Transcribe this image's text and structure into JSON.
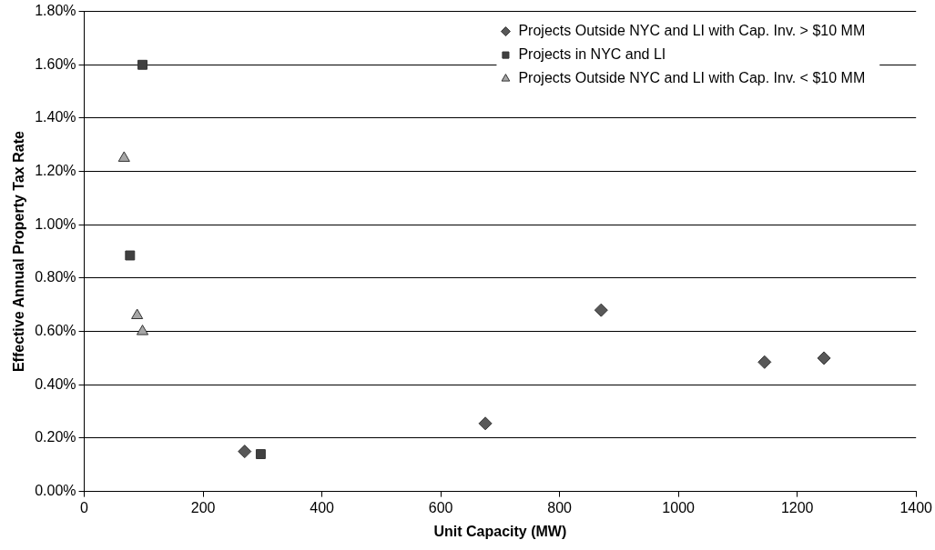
{
  "chart_data": {
    "type": "scatter",
    "xlabel": "Unit Capacity (MW)",
    "ylabel": "Effective Annual Property Tax Rate",
    "xlim": [
      0,
      1400
    ],
    "xticks": [
      0,
      200,
      400,
      600,
      800,
      1000,
      1200,
      1400
    ],
    "ylim": [
      0,
      1.8
    ],
    "yticks": [
      {
        "value": 0,
        "label": "0.00%"
      },
      {
        "value": 0.2,
        "label": "0.20%"
      },
      {
        "value": 0.4,
        "label": "0.40%"
      },
      {
        "value": 0.6,
        "label": "0.60%"
      },
      {
        "value": 0.8,
        "label": "0.80%"
      },
      {
        "value": 1.0,
        "label": "1.00%"
      },
      {
        "value": 1.2,
        "label": "1.20%"
      },
      {
        "value": 1.4,
        "label": "1.40%"
      },
      {
        "value": 1.6,
        "label": "1.60%"
      },
      {
        "value": 1.8,
        "label": "1.80%"
      }
    ],
    "grid": "y",
    "legend": "top right",
    "series": [
      {
        "name": "Projects Outside NYC and LI with Cap. Inv. > $10 MM",
        "color": "#585858",
        "marker": "diamond",
        "x": [
          270,
          675,
          870,
          1145,
          1245
        ],
        "values": [
          0.15,
          0.255,
          0.68,
          0.485,
          0.5
        ]
      },
      {
        "name": "Projects in NYC and LI",
        "color": "#404040",
        "marker": "square",
        "x": [
          77,
          98,
          297
        ],
        "values": [
          0.885,
          1.6,
          0.14
        ]
      },
      {
        "name": "Projects Outside NYC and LI with Cap. Inv. < $10 MM",
        "color": "#a6a6a6",
        "marker": "triangle",
        "x": [
          67,
          89,
          98
        ],
        "values": [
          1.25,
          0.66,
          0.6
        ]
      }
    ]
  }
}
